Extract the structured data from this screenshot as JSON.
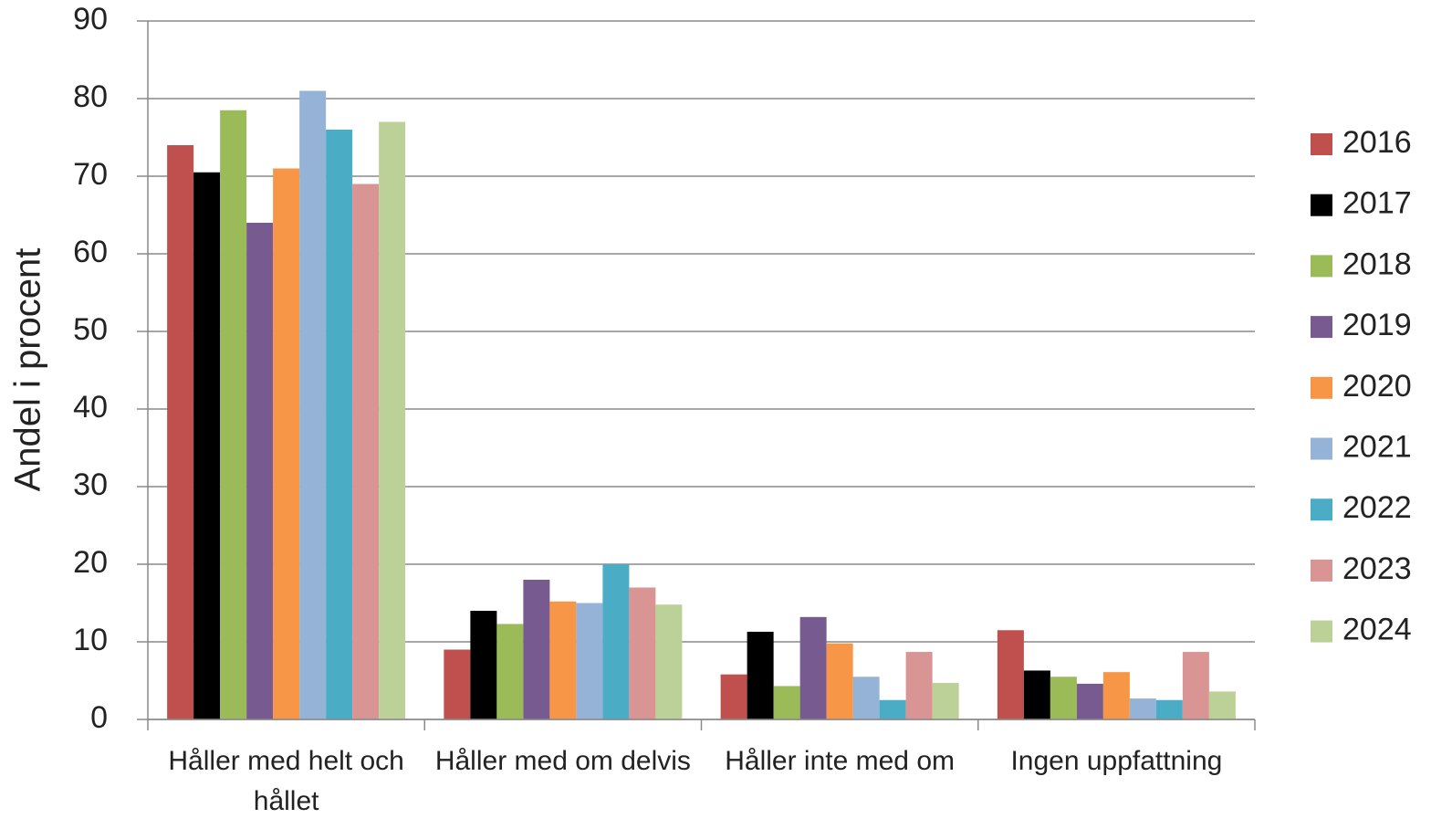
{
  "chart_data": {
    "type": "bar",
    "y_label": "Andel i procent",
    "categories": [
      "Håller med helt och hållet",
      "Håller med om delvis",
      "Håller inte med om",
      "Ingen uppfattning"
    ],
    "series": [
      {
        "name": "2016",
        "color": "#c0504d",
        "values": [
          74,
          9,
          5.8,
          11.5
        ]
      },
      {
        "name": "2017",
        "color": "#000000",
        "values": [
          70.5,
          14,
          11.3,
          6.3
        ]
      },
      {
        "name": "2018",
        "color": "#9bbb59",
        "values": [
          78.5,
          12.3,
          4.3,
          5.5
        ]
      },
      {
        "name": "2019",
        "color": "#775a8f",
        "values": [
          64,
          18,
          13.2,
          4.6
        ]
      },
      {
        "name": "2020",
        "color": "#f79646",
        "values": [
          71,
          15.2,
          9.8,
          6.1
        ]
      },
      {
        "name": "2021",
        "color": "#95b3d7",
        "values": [
          81,
          15,
          5.5,
          2.7
        ]
      },
      {
        "name": "2022",
        "color": "#4bacc6",
        "values": [
          76,
          20,
          2.5,
          2.5
        ]
      },
      {
        "name": "2023",
        "color": "#d99594",
        "values": [
          69,
          17,
          8.7,
          8.7
        ]
      },
      {
        "name": "2024",
        "color": "#bcd197",
        "values": [
          77,
          14.8,
          4.7,
          3.6
        ]
      }
    ],
    "ylim": [
      0,
      90
    ],
    "yticks": [
      0,
      10,
      20,
      30,
      40,
      50,
      60,
      70,
      80,
      90
    ],
    "grid": true,
    "legend": "right"
  }
}
